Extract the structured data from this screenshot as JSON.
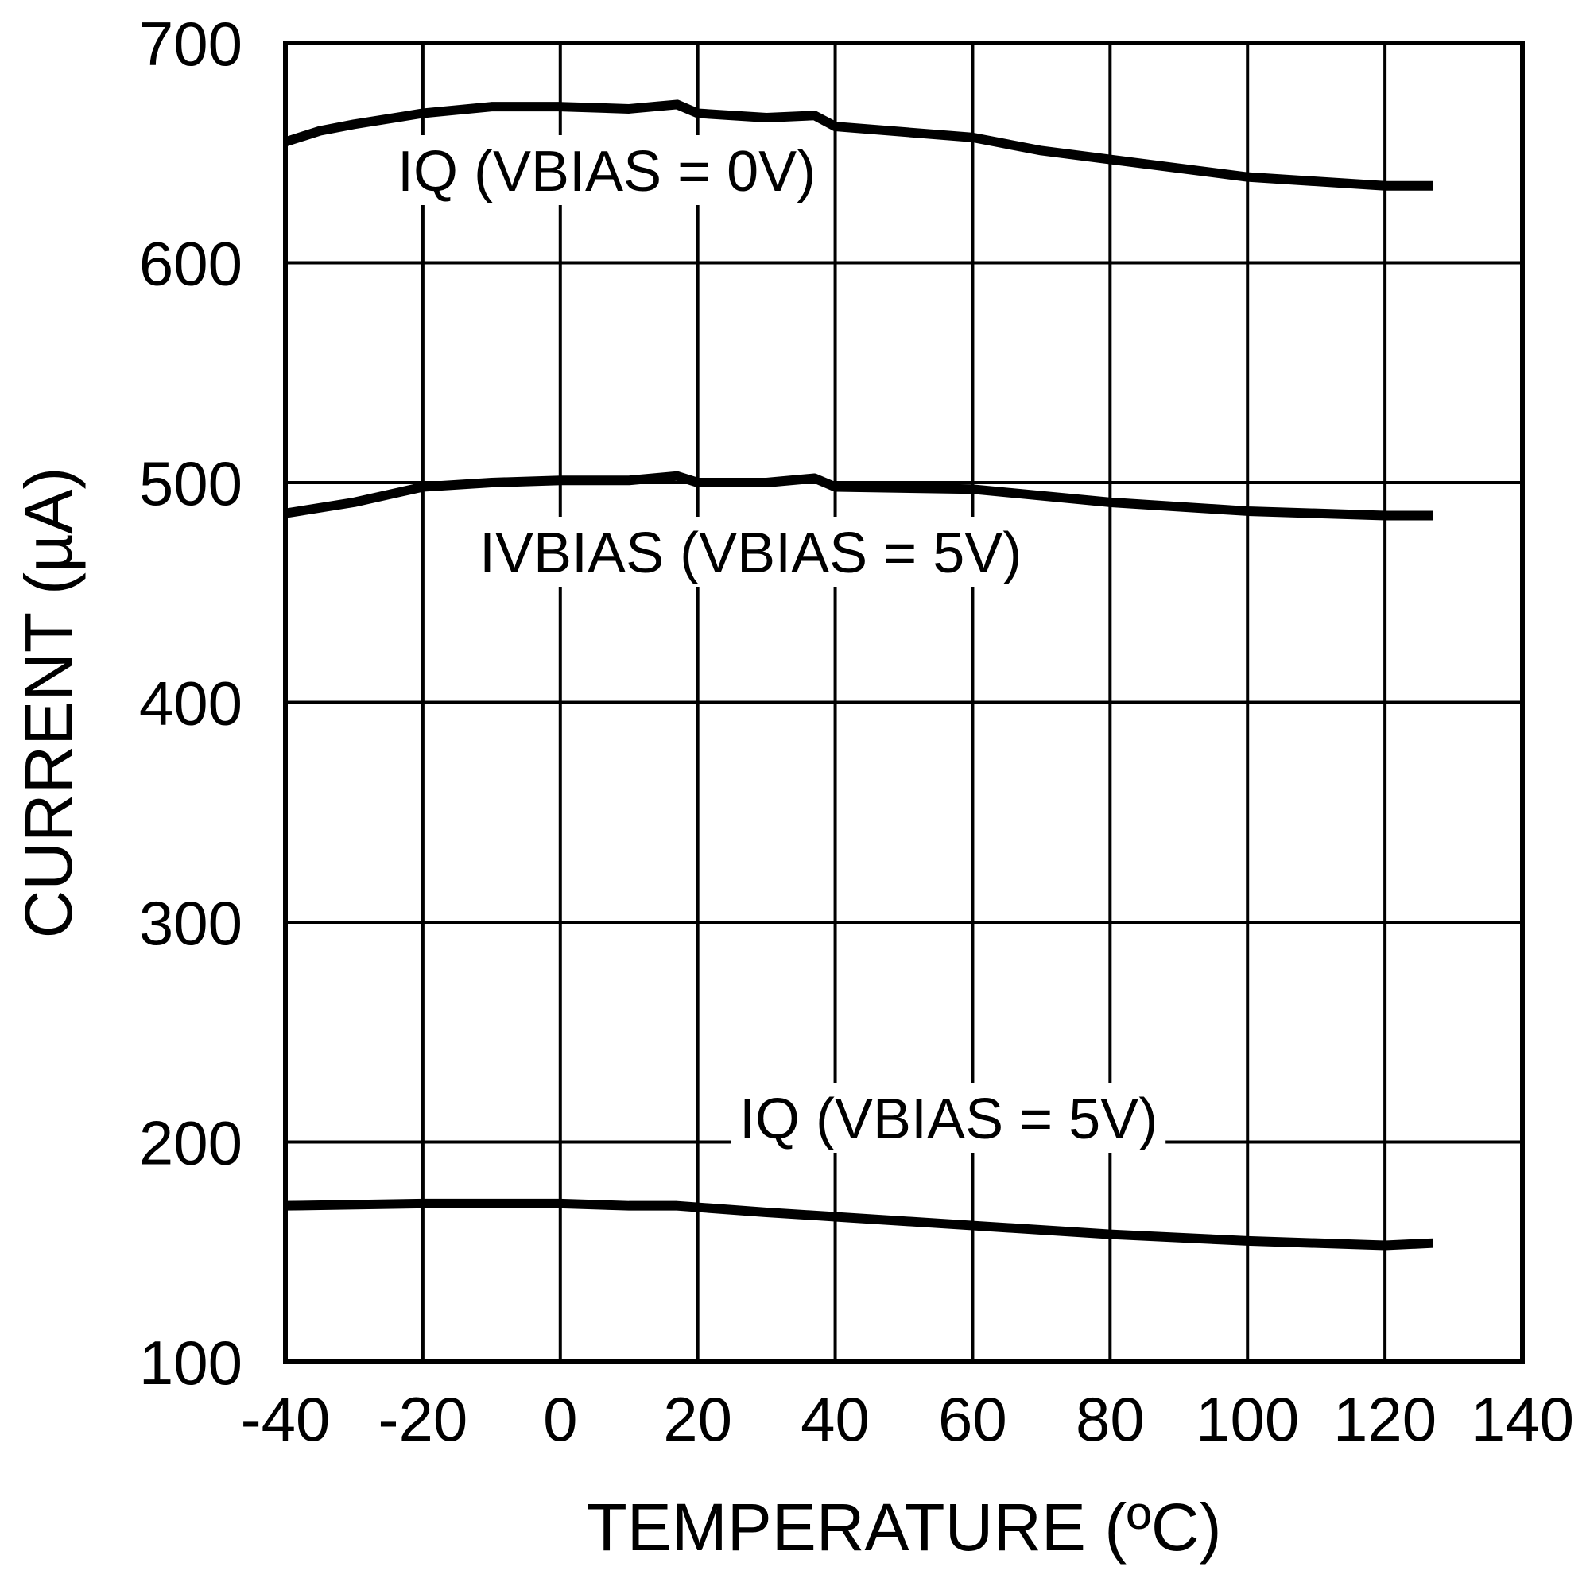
{
  "chart_data": {
    "type": "line",
    "xlabel": "TEMPERATURE (ºC)",
    "ylabel": "CURRENT (µA)",
    "xlim": [
      -40,
      140
    ],
    "ylim": [
      100,
      700
    ],
    "xticks": [
      -40,
      -20,
      0,
      20,
      40,
      60,
      80,
      100,
      120,
      140
    ],
    "yticks": [
      100,
      200,
      300,
      400,
      500,
      600,
      700
    ],
    "grid": true,
    "series": [
      {
        "name": "IQ (VBIAS = 0V)",
        "x": [
          -40,
          -35,
          -30,
          -20,
          -10,
          0,
          10,
          17,
          20,
          30,
          37,
          40,
          60,
          70,
          80,
          100,
          120,
          127
        ],
        "y": [
          655,
          660,
          663,
          668,
          671,
          671,
          670,
          672,
          668,
          666,
          667,
          662,
          657,
          651,
          647,
          639,
          635,
          635
        ]
      },
      {
        "name": "IVBIAS (VBIAS = 5V)",
        "x": [
          -40,
          -30,
          -20,
          -10,
          0,
          10,
          17,
          20,
          30,
          37,
          40,
          60,
          80,
          100,
          120,
          127
        ],
        "y": [
          486,
          491,
          498,
          500,
          501,
          501,
          503,
          500,
          500,
          502,
          498,
          497,
          491,
          487,
          485,
          485
        ]
      },
      {
        "name": "IQ (VBIAS = 5V)",
        "x": [
          -40,
          -20,
          0,
          10,
          17,
          30,
          40,
          60,
          80,
          100,
          120,
          127
        ],
        "y": [
          171,
          172,
          172,
          171,
          171,
          168,
          166,
          162,
          158,
          155,
          153,
          154
        ]
      }
    ],
    "line_color": "#000000"
  }
}
